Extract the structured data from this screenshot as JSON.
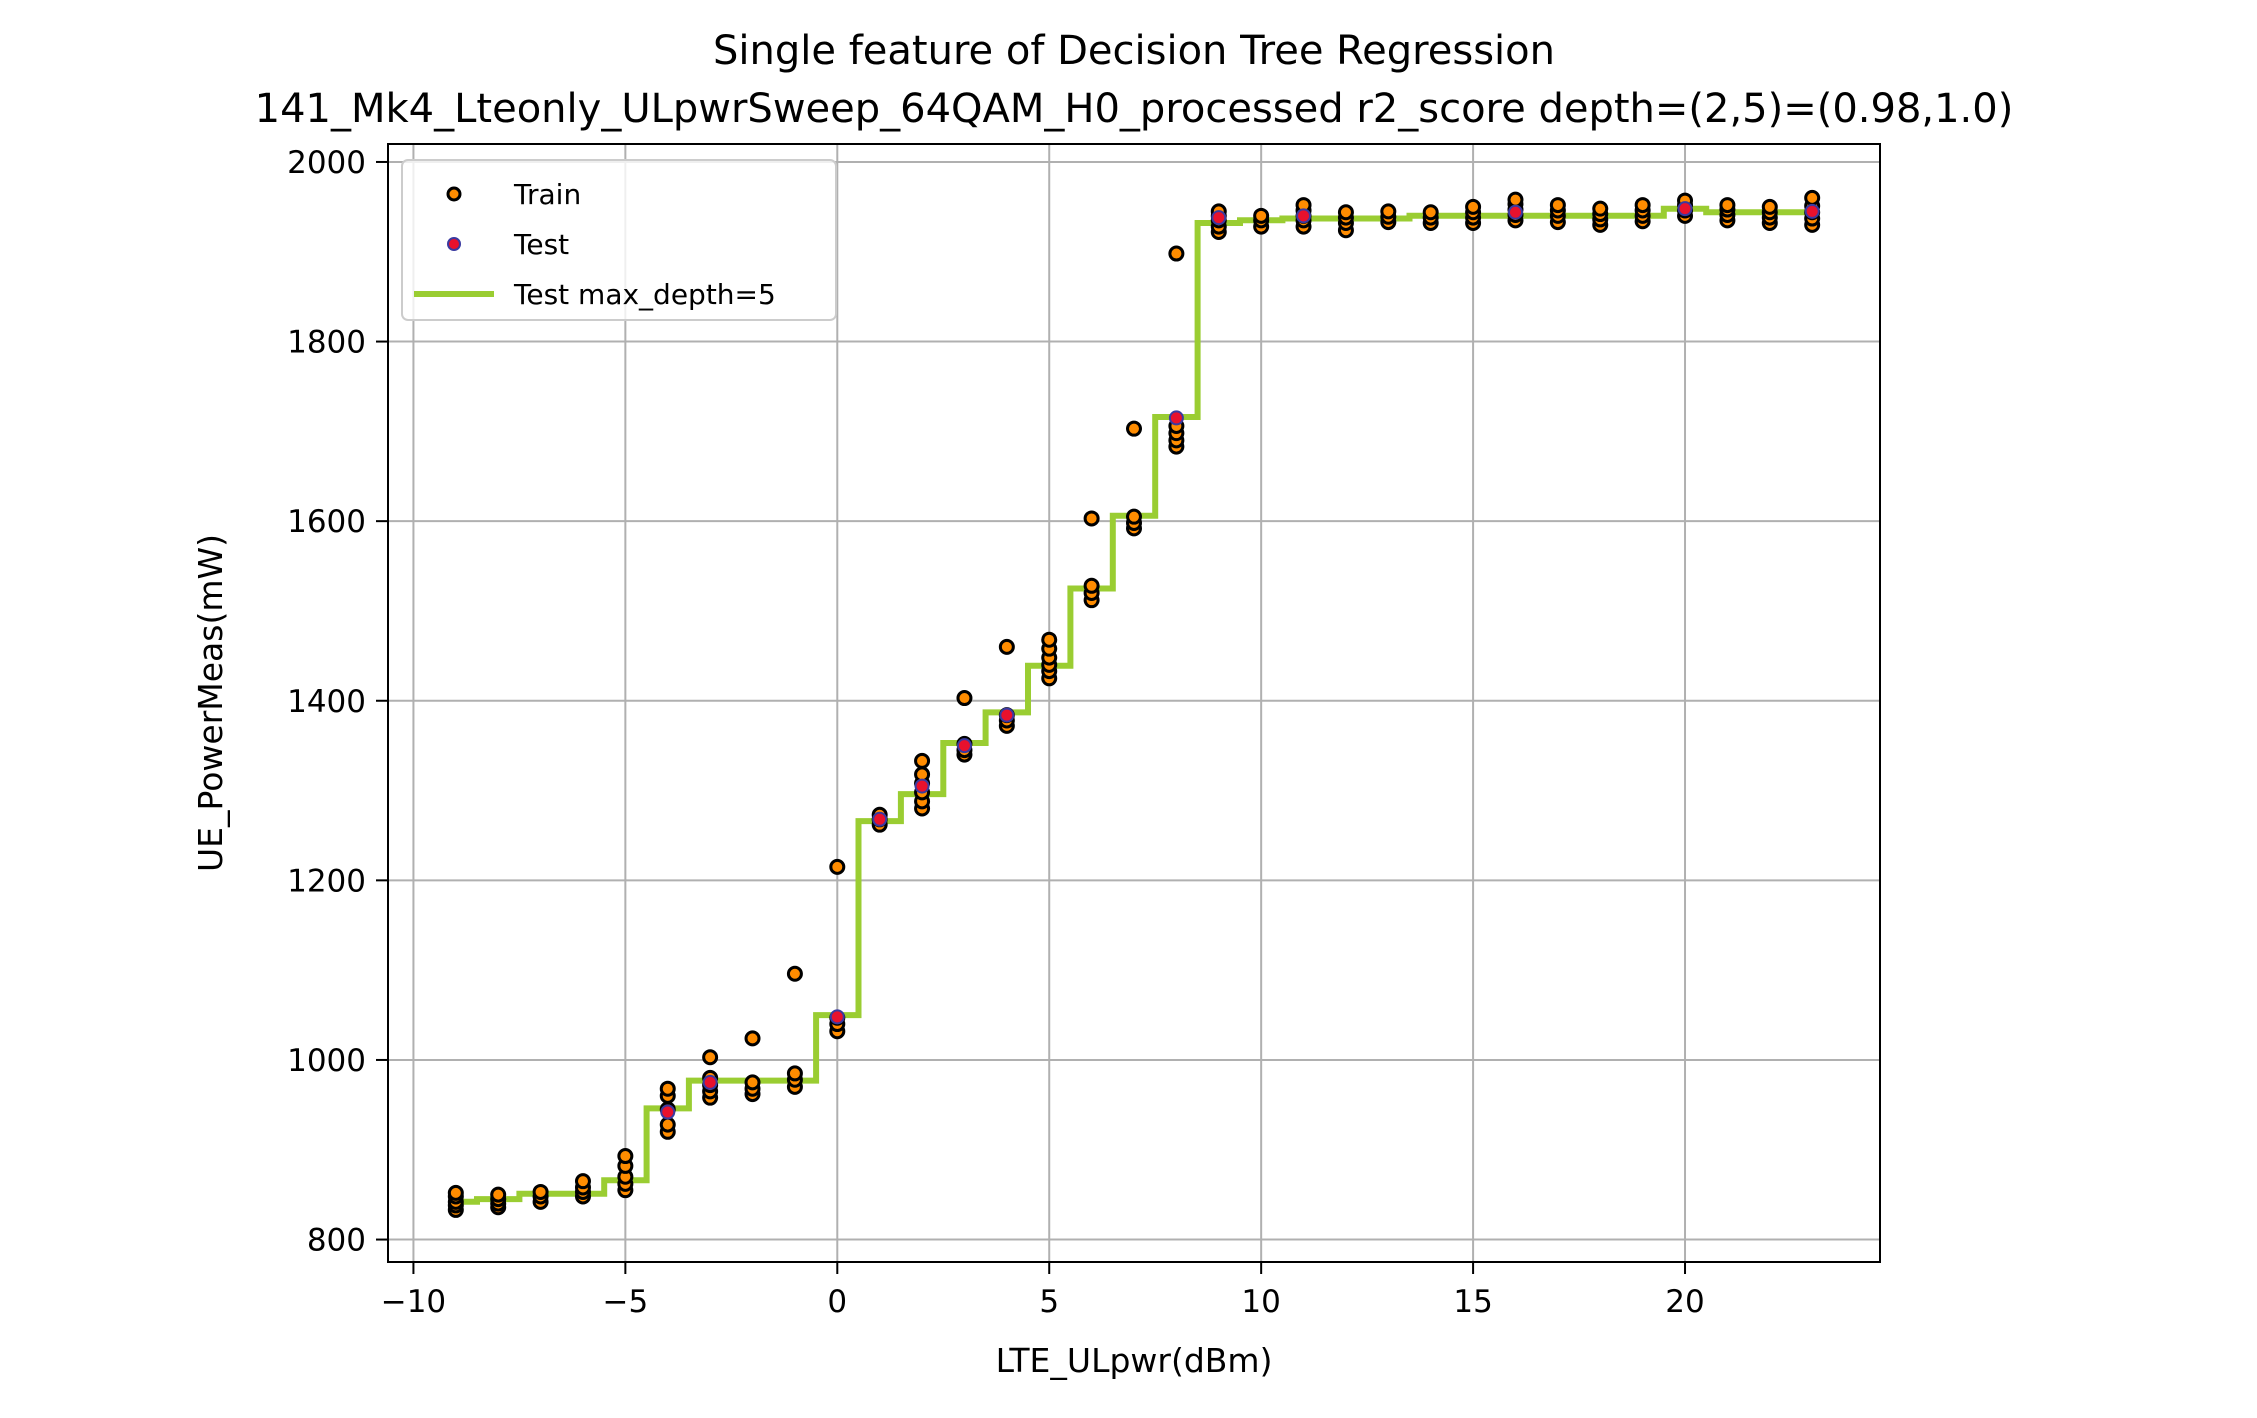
{
  "chart_data": {
    "type": "scatter",
    "title": "Single feature of Decision Tree Regression",
    "subtitle": "141_Mk4_Lteonly_ULpwrSweep_64QAM_H0_processed r2_score depth=(2,5)=(0.98,1.0)",
    "xlabel": "LTE_ULpwr(dBm)",
    "ylabel": "UE_PowerMeas(mW)",
    "xlim": [
      -10.6,
      24.6
    ],
    "ylim": [
      775,
      2020
    ],
    "xticks": [
      -10,
      -5,
      0,
      5,
      10,
      15,
      20
    ],
    "xtick_labels": [
      "−10",
      "−5",
      "0",
      "5",
      "10",
      "15",
      "20"
    ],
    "yticks": [
      800,
      1000,
      1200,
      1400,
      1600,
      1800,
      2000
    ],
    "ytick_labels": [
      "800",
      "1000",
      "1200",
      "1400",
      "1600",
      "1800",
      "2000"
    ],
    "grid": true,
    "legend_position": "top-left",
    "colors": {
      "train_fill": "#ff8c00",
      "train_edge": "#000000",
      "test_fill": "#e8112d",
      "test_edge": "#3a3aa0",
      "line": "#9acd32",
      "grid": "#b0b0b0"
    },
    "series": [
      {
        "name": "Train",
        "kind": "scatter",
        "points": [
          [
            -9,
            833
          ],
          [
            -9,
            838
          ],
          [
            -9,
            842
          ],
          [
            -9,
            848
          ],
          [
            -9,
            852
          ],
          [
            -8,
            836
          ],
          [
            -8,
            840
          ],
          [
            -8,
            845
          ],
          [
            -8,
            850
          ],
          [
            -7,
            842
          ],
          [
            -7,
            848
          ],
          [
            -7,
            853
          ],
          [
            -6,
            848
          ],
          [
            -6,
            853
          ],
          [
            -6,
            858
          ],
          [
            -6,
            865
          ],
          [
            -5,
            855
          ],
          [
            -5,
            862
          ],
          [
            -5,
            870
          ],
          [
            -5,
            882
          ],
          [
            -5,
            893
          ],
          [
            -4,
            920
          ],
          [
            -4,
            928
          ],
          [
            -4,
            945
          ],
          [
            -4,
            960
          ],
          [
            -4,
            968
          ],
          [
            -3,
            958
          ],
          [
            -3,
            965
          ],
          [
            -3,
            972
          ],
          [
            -3,
            980
          ],
          [
            -3,
            1003
          ],
          [
            -2,
            962
          ],
          [
            -2,
            968
          ],
          [
            -2,
            975
          ],
          [
            -2,
            1024
          ],
          [
            -1,
            970
          ],
          [
            -1,
            978
          ],
          [
            -1,
            985
          ],
          [
            -1,
            1096
          ],
          [
            0,
            1032
          ],
          [
            0,
            1040
          ],
          [
            0,
            1047
          ],
          [
            0,
            1215
          ],
          [
            1,
            1262
          ],
          [
            1,
            1268
          ],
          [
            1,
            1273
          ],
          [
            2,
            1280
          ],
          [
            2,
            1288
          ],
          [
            2,
            1298
          ],
          [
            2,
            1308
          ],
          [
            2,
            1318
          ],
          [
            2,
            1333
          ],
          [
            3,
            1340
          ],
          [
            3,
            1345
          ],
          [
            3,
            1352
          ],
          [
            3,
            1403
          ],
          [
            4,
            1372
          ],
          [
            4,
            1378
          ],
          [
            4,
            1384
          ],
          [
            4,
            1460
          ],
          [
            5,
            1425
          ],
          [
            5,
            1433
          ],
          [
            5,
            1440
          ],
          [
            5,
            1448
          ],
          [
            5,
            1458
          ],
          [
            5,
            1468
          ],
          [
            6,
            1512
          ],
          [
            6,
            1520
          ],
          [
            6,
            1528
          ],
          [
            6,
            1603
          ],
          [
            7,
            1592
          ],
          [
            7,
            1598
          ],
          [
            7,
            1605
          ],
          [
            7,
            1703
          ],
          [
            8,
            1683
          ],
          [
            8,
            1690
          ],
          [
            8,
            1698
          ],
          [
            8,
            1706
          ],
          [
            8,
            1898
          ],
          [
            9,
            1922
          ],
          [
            9,
            1928
          ],
          [
            9,
            1935
          ],
          [
            9,
            1940
          ],
          [
            9,
            1945
          ],
          [
            10,
            1928
          ],
          [
            10,
            1935
          ],
          [
            10,
            1940
          ],
          [
            11,
            1928
          ],
          [
            11,
            1935
          ],
          [
            11,
            1940
          ],
          [
            11,
            1946
          ],
          [
            11,
            1952
          ],
          [
            12,
            1924
          ],
          [
            12,
            1932
          ],
          [
            12,
            1938
          ],
          [
            12,
            1944
          ],
          [
            13,
            1933
          ],
          [
            13,
            1939
          ],
          [
            13,
            1945
          ],
          [
            14,
            1932
          ],
          [
            14,
            1938
          ],
          [
            14,
            1944
          ],
          [
            15,
            1932
          ],
          [
            15,
            1938
          ],
          [
            15,
            1944
          ],
          [
            15,
            1950
          ],
          [
            16,
            1935
          ],
          [
            16,
            1941
          ],
          [
            16,
            1947
          ],
          [
            16,
            1953
          ],
          [
            16,
            1958
          ],
          [
            17,
            1933
          ],
          [
            17,
            1940
          ],
          [
            17,
            1946
          ],
          [
            17,
            1952
          ],
          [
            18,
            1930
          ],
          [
            18,
            1936
          ],
          [
            18,
            1942
          ],
          [
            18,
            1948
          ],
          [
            19,
            1934
          ],
          [
            19,
            1940
          ],
          [
            19,
            1946
          ],
          [
            19,
            1952
          ],
          [
            20,
            1940
          ],
          [
            20,
            1946
          ],
          [
            20,
            1952
          ],
          [
            20,
            1957
          ],
          [
            21,
            1935
          ],
          [
            21,
            1941
          ],
          [
            21,
            1947
          ],
          [
            21,
            1952
          ],
          [
            22,
            1932
          ],
          [
            22,
            1938
          ],
          [
            22,
            1944
          ],
          [
            22,
            1950
          ],
          [
            23,
            1930
          ],
          [
            23,
            1937
          ],
          [
            23,
            1944
          ],
          [
            23,
            1951
          ],
          [
            23,
            1960
          ]
        ]
      },
      {
        "name": "Test",
        "kind": "scatter",
        "points": [
          [
            -4,
            942
          ],
          [
            -3,
            975
          ],
          [
            0,
            1048
          ],
          [
            1,
            1268
          ],
          [
            2,
            1305
          ],
          [
            3,
            1350
          ],
          [
            4,
            1384
          ],
          [
            8,
            1715
          ],
          [
            9,
            1938
          ],
          [
            11,
            1940
          ],
          [
            16,
            1944
          ],
          [
            20,
            1948
          ],
          [
            23,
            1945
          ]
        ]
      },
      {
        "name": "Test max_depth=5",
        "kind": "step",
        "x": [
          -9,
          -8.5,
          -8.5,
          -7.5,
          -7.5,
          -5.5,
          -5.5,
          -4.5,
          -4.5,
          -3.5,
          -3.5,
          -0.5,
          -0.5,
          0.5,
          0.5,
          1.5,
          1.5,
          2.5,
          2.5,
          3.5,
          3.5,
          4.5,
          4.5,
          5.5,
          5.5,
          6.5,
          6.5,
          7.5,
          7.5,
          8.5,
          8.5,
          9.5,
          9.5,
          10.5,
          10.5,
          13.5,
          13.5,
          19.5,
          19.5,
          20.5,
          20.5,
          23
        ],
        "y": [
          842,
          842,
          845,
          845,
          851,
          851,
          866,
          866,
          946,
          946,
          977,
          977,
          1050,
          1050,
          1266,
          1266,
          1296,
          1296,
          1353,
          1353,
          1387,
          1387,
          1439,
          1439,
          1525,
          1525,
          1606,
          1606,
          1716,
          1716,
          1932,
          1932,
          1935,
          1935,
          1937,
          1937,
          1940,
          1940,
          1948,
          1948,
          1944,
          1944
        ]
      }
    ]
  }
}
